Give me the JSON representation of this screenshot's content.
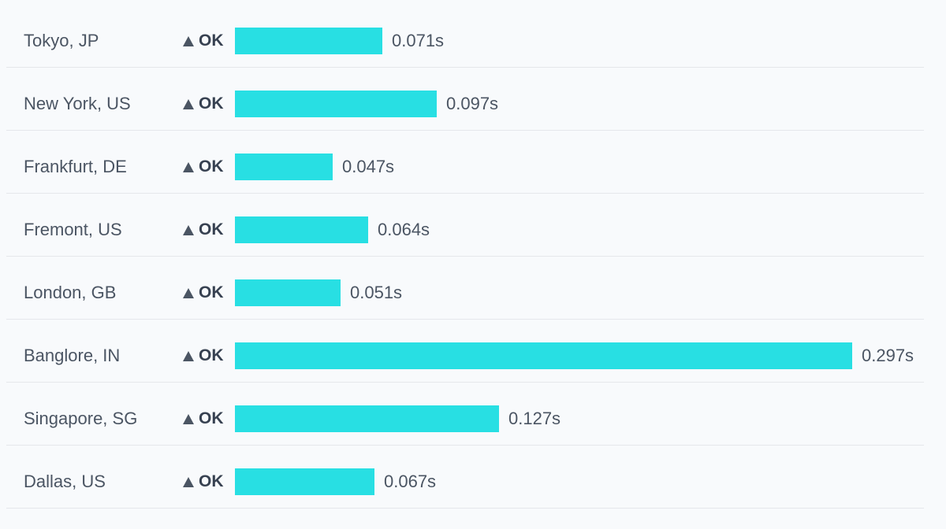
{
  "chart_data": {
    "type": "bar",
    "orientation": "horizontal",
    "categories": [
      "Tokyo, JP",
      "New York, US",
      "Frankfurt, DE",
      "Fremont, US",
      "London, GB",
      "Banglore, IN",
      "Singapore, SG",
      "Dallas, US"
    ],
    "statuses": [
      "OK",
      "OK",
      "OK",
      "OK",
      "OK",
      "OK",
      "OK",
      "OK"
    ],
    "values": [
      0.071,
      0.097,
      0.047,
      0.064,
      0.051,
      0.297,
      0.127,
      0.067
    ],
    "value_labels": [
      "0.071s",
      "0.097s",
      "0.047s",
      "0.064s",
      "0.051s",
      "0.297s",
      "0.127s",
      "0.067s"
    ],
    "unit": "s",
    "max_value": 0.297,
    "bar_color": "#28dfe3",
    "status_icon": "triangle-up-icon",
    "grid": false,
    "legend": "none"
  }
}
